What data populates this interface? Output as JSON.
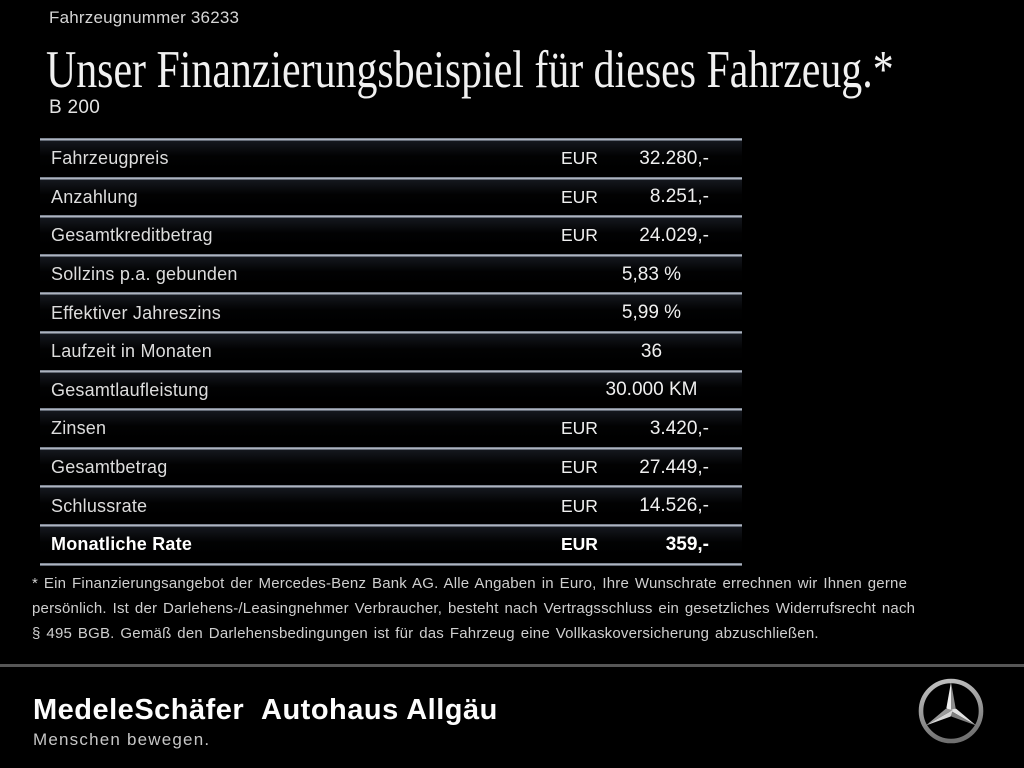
{
  "header": {
    "vehicle_number": "Fahrzeugnummer 36233",
    "title": "Unser Finanzierungsbeispiel für dieses Fahrzeug.*",
    "model": "B 200"
  },
  "finance_table": {
    "rows": [
      {
        "label": "Fahrzeugpreis",
        "currency": "EUR",
        "value": "32.280,-",
        "align": "right",
        "bold": false
      },
      {
        "label": "Anzahlung",
        "currency": "EUR",
        "value": "8.251,-",
        "align": "right",
        "bold": false
      },
      {
        "label": "Gesamtkreditbetrag",
        "currency": "EUR",
        "value": "24.029,-",
        "align": "right",
        "bold": false
      },
      {
        "label": "Sollzins p.a. gebunden",
        "currency": "",
        "value": "5,83 %",
        "align": "center",
        "bold": false
      },
      {
        "label": "Effektiver Jahreszins",
        "currency": "",
        "value": "5,99 %",
        "align": "center",
        "bold": false
      },
      {
        "label": "Laufzeit in Monaten",
        "currency": "",
        "value": "36",
        "align": "center",
        "bold": false
      },
      {
        "label": "Gesamtlaufleistung",
        "currency": "",
        "value": "30.000 KM",
        "align": "center",
        "bold": false
      },
      {
        "label": "Zinsen",
        "currency": "EUR",
        "value": "3.420,-",
        "align": "right",
        "bold": false
      },
      {
        "label": "Gesamtbetrag",
        "currency": "EUR",
        "value": "27.449,-",
        "align": "right",
        "bold": false
      },
      {
        "label": "Schlussrate",
        "currency": "EUR",
        "value": "14.526,-",
        "align": "right",
        "bold": false
      },
      {
        "label": "Monatliche Rate",
        "currency": "EUR",
        "value": "359,-",
        "align": "right",
        "bold": true
      }
    ]
  },
  "footnote": {
    "lines": [
      "* Ein Finanzierungsangebot der Mercedes-Benz Bank AG. Alle Angaben in Euro, Ihre Wunschrate errechnen wir Ihnen gerne",
      "persönlich. Ist der Darlehens-/Leasingnehmer Verbraucher, besteht nach Vertragsschluss ein gesetzliches Widerrufsrecht nach",
      "§ 495 BGB. Gemäß den Darlehensbedingungen ist für das Fahrzeug eine Vollkaskoversicherung abzuschließen."
    ]
  },
  "footer": {
    "dealer_name": "MedeleSchäfer",
    "dealer_tagline": "Menschen bewegen.",
    "dealer_name_2": "Autohaus Allgäu",
    "brand_icon": "mercedes-star-icon"
  },
  "colors": {
    "background": "#000000",
    "row_separator": "#c2c9d4",
    "footer_divider": "#565656",
    "text_primary": "#f0f0f0",
    "text_secondary": "#cfcfcf"
  }
}
